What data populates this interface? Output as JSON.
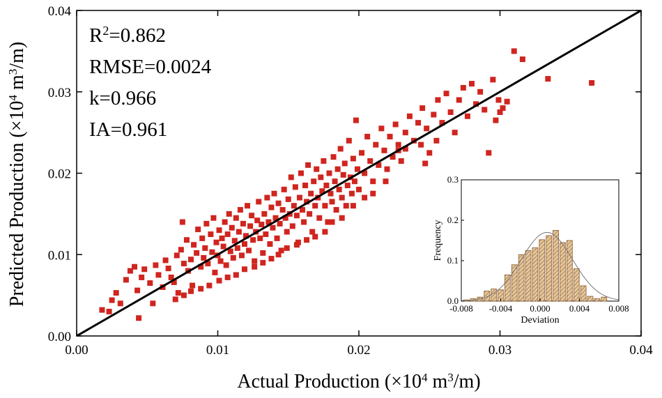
{
  "chart_data": [
    {
      "type": "scatter",
      "xlabel_parts": [
        "Actual Production (×10",
        "4",
        " m",
        "3",
        "/m)"
      ],
      "ylabel_parts": [
        "Predicted Production (×10",
        "4",
        " m",
        "3",
        "/m)"
      ],
      "xlim": [
        0.0,
        0.04
      ],
      "ylim": [
        0.0,
        0.04
      ],
      "xticks": [
        "0.00",
        "0.01",
        "0.02",
        "0.03",
        "0.04"
      ],
      "yticks": [
        "0.00",
        "0.01",
        "0.02",
        "0.03",
        "0.04"
      ],
      "grid": false,
      "reference_line": {
        "from": [
          0.0,
          0.0
        ],
        "to": [
          0.04,
          0.04
        ]
      },
      "marker_color": "#d0251f",
      "line_color": "#000000",
      "stats": [
        {
          "base": "R",
          "sup": "2",
          "rest": "=0.862"
        },
        {
          "base": "RMSE=0.0024",
          "sup": "",
          "rest": ""
        },
        {
          "base": "k=0.966",
          "sup": "",
          "rest": ""
        },
        {
          "base": "IA=0.961",
          "sup": "",
          "rest": ""
        }
      ],
      "points": [
        [
          0.0018,
          0.0032
        ],
        [
          0.0023,
          0.003
        ],
        [
          0.0025,
          0.0044
        ],
        [
          0.0028,
          0.0053
        ],
        [
          0.0031,
          0.004
        ],
        [
          0.0035,
          0.0069
        ],
        [
          0.0038,
          0.008
        ],
        [
          0.0041,
          0.0085
        ],
        [
          0.0043,
          0.0056
        ],
        [
          0.0044,
          0.0022
        ],
        [
          0.0046,
          0.0072
        ],
        [
          0.0048,
          0.0082
        ],
        [
          0.0052,
          0.0065
        ],
        [
          0.0054,
          0.004
        ],
        [
          0.0056,
          0.0087
        ],
        [
          0.0058,
          0.0075
        ],
        [
          0.0061,
          0.006
        ],
        [
          0.0063,
          0.0093
        ],
        [
          0.0065,
          0.0083
        ],
        [
          0.0067,
          0.0072
        ],
        [
          0.0069,
          0.0066
        ],
        [
          0.0071,
          0.0099
        ],
        [
          0.0072,
          0.0053
        ],
        [
          0.0074,
          0.0106
        ],
        [
          0.0075,
          0.014
        ],
        [
          0.0076,
          0.0089
        ],
        [
          0.0078,
          0.0118
        ],
        [
          0.0079,
          0.008
        ],
        [
          0.0081,
          0.0094
        ],
        [
          0.0082,
          0.0062
        ],
        [
          0.0083,
          0.0112
        ],
        [
          0.0085,
          0.0102
        ],
        [
          0.0086,
          0.0131
        ],
        [
          0.0088,
          0.0085
        ],
        [
          0.0089,
          0.012
        ],
        [
          0.009,
          0.0096
        ],
        [
          0.0091,
          0.0108
        ],
        [
          0.0092,
          0.0138
        ],
        [
          0.0093,
          0.0089
        ],
        [
          0.0095,
          0.0125
        ],
        [
          0.0096,
          0.0103
        ],
        [
          0.0097,
          0.0145
        ],
        [
          0.0098,
          0.0078
        ],
        [
          0.0099,
          0.0115
        ],
        [
          0.01,
          0.0099
        ],
        [
          0.0101,
          0.013
        ],
        [
          0.0102,
          0.0092
        ],
        [
          0.0103,
          0.012
        ],
        [
          0.0104,
          0.011
        ],
        [
          0.0105,
          0.014
        ],
        [
          0.0106,
          0.0087
        ],
        [
          0.0107,
          0.0125
        ],
        [
          0.0108,
          0.015
        ],
        [
          0.0109,
          0.0104
        ],
        [
          0.011,
          0.0133
        ],
        [
          0.0111,
          0.0096
        ],
        [
          0.0112,
          0.0117
        ],
        [
          0.0113,
          0.0145
        ],
        [
          0.0114,
          0.0108
        ],
        [
          0.0115,
          0.0128
        ],
        [
          0.0116,
          0.0155
        ],
        [
          0.0117,
          0.0099
        ],
        [
          0.0118,
          0.0138
        ],
        [
          0.0119,
          0.0113
        ],
        [
          0.012,
          0.0123
        ],
        [
          0.0121,
          0.016
        ],
        [
          0.0122,
          0.0105
        ],
        [
          0.0123,
          0.0135
        ],
        [
          0.0124,
          0.0148
        ],
        [
          0.0125,
          0.0118
        ],
        [
          0.0126,
          0.0092
        ],
        [
          0.0127,
          0.0128
        ],
        [
          0.0128,
          0.0142
        ],
        [
          0.0129,
          0.0165
        ],
        [
          0.013,
          0.012
        ],
        [
          0.0131,
          0.0137
        ],
        [
          0.0132,
          0.0102
        ],
        [
          0.0133,
          0.015
        ],
        [
          0.0134,
          0.0125
        ],
        [
          0.0135,
          0.017
        ],
        [
          0.0136,
          0.014
        ],
        [
          0.0137,
          0.0113
        ],
        [
          0.0138,
          0.0158
        ],
        [
          0.0139,
          0.0133
        ],
        [
          0.014,
          0.0175
        ],
        [
          0.0141,
          0.0145
        ],
        [
          0.0142,
          0.012
        ],
        [
          0.0143,
          0.0163
        ],
        [
          0.0144,
          0.0138
        ],
        [
          0.0145,
          0.0105
        ],
        [
          0.0146,
          0.0155
        ],
        [
          0.0147,
          0.018
        ],
        [
          0.0148,
          0.0145
        ],
        [
          0.0149,
          0.0128
        ],
        [
          0.015,
          0.0168
        ],
        [
          0.0151,
          0.015
        ],
        [
          0.0152,
          0.0195
        ],
        [
          0.0153,
          0.0135
        ],
        [
          0.0154,
          0.016
        ],
        [
          0.0155,
          0.0183
        ],
        [
          0.0156,
          0.0148
        ],
        [
          0.0157,
          0.0115
        ],
        [
          0.0158,
          0.017
        ],
        [
          0.0159,
          0.02
        ],
        [
          0.016,
          0.0155
        ],
        [
          0.0161,
          0.014
        ],
        [
          0.0162,
          0.0185
        ],
        [
          0.0163,
          0.0165
        ],
        [
          0.0164,
          0.021
        ],
        [
          0.0165,
          0.015
        ],
        [
          0.0166,
          0.0175
        ],
        [
          0.0167,
          0.0128
        ],
        [
          0.0168,
          0.019
        ],
        [
          0.0169,
          0.016
        ],
        [
          0.017,
          0.0205
        ],
        [
          0.0171,
          0.017
        ],
        [
          0.0172,
          0.0145
        ],
        [
          0.0173,
          0.0195
        ],
        [
          0.0174,
          0.0178
        ],
        [
          0.0175,
          0.0215
        ],
        [
          0.0176,
          0.016
        ],
        [
          0.0177,
          0.0185
        ],
        [
          0.0178,
          0.014
        ],
        [
          0.0179,
          0.02
        ],
        [
          0.018,
          0.0175
        ],
        [
          0.0181,
          0.0165
        ],
        [
          0.0182,
          0.022
        ],
        [
          0.0183,
          0.019
        ],
        [
          0.0184,
          0.0155
        ],
        [
          0.0185,
          0.0205
        ],
        [
          0.0186,
          0.018
        ],
        [
          0.0187,
          0.023
        ],
        [
          0.0188,
          0.017
        ],
        [
          0.0189,
          0.0198
        ],
        [
          0.019,
          0.0212
        ],
        [
          0.0191,
          0.016
        ],
        [
          0.0192,
          0.0185
        ],
        [
          0.0193,
          0.024
        ],
        [
          0.0194,
          0.0195
        ],
        [
          0.0195,
          0.0175
        ],
        [
          0.0196,
          0.0218
        ],
        [
          0.0197,
          0.019
        ],
        [
          0.0198,
          0.0265
        ],
        [
          0.0199,
          0.0205
        ],
        [
          0.02,
          0.018
        ],
        [
          0.0202,
          0.0225
        ],
        [
          0.0204,
          0.02
        ],
        [
          0.0206,
          0.0245
        ],
        [
          0.0208,
          0.0215
        ],
        [
          0.021,
          0.019
        ],
        [
          0.0212,
          0.0235
        ],
        [
          0.0214,
          0.021
        ],
        [
          0.0216,
          0.0255
        ],
        [
          0.0218,
          0.0228
        ],
        [
          0.022,
          0.0205
        ],
        [
          0.0222,
          0.0245
        ],
        [
          0.0224,
          0.022
        ],
        [
          0.0226,
          0.026
        ],
        [
          0.0228,
          0.0235
        ],
        [
          0.023,
          0.0215
        ],
        [
          0.0233,
          0.025
        ],
        [
          0.0236,
          0.027
        ],
        [
          0.0239,
          0.024
        ],
        [
          0.0242,
          0.0262
        ],
        [
          0.0245,
          0.028
        ],
        [
          0.0248,
          0.0255
        ],
        [
          0.025,
          0.0225
        ],
        [
          0.0253,
          0.0272
        ],
        [
          0.0256,
          0.029
        ],
        [
          0.0259,
          0.0262
        ],
        [
          0.0262,
          0.0298
        ],
        [
          0.0265,
          0.0275
        ],
        [
          0.0268,
          0.025
        ],
        [
          0.0271,
          0.029
        ],
        [
          0.0274,
          0.0305
        ],
        [
          0.0277,
          0.027
        ],
        [
          0.028,
          0.031
        ],
        [
          0.0283,
          0.0285
        ],
        [
          0.0286,
          0.03
        ],
        [
          0.0289,
          0.0278
        ],
        [
          0.0292,
          0.0225
        ],
        [
          0.0295,
          0.0315
        ],
        [
          0.0297,
          0.0265
        ],
        [
          0.0299,
          0.029
        ],
        [
          0.03,
          0.0275
        ],
        [
          0.0302,
          0.028
        ],
        [
          0.0305,
          0.0288
        ],
        [
          0.031,
          0.035
        ],
        [
          0.0316,
          0.034
        ],
        [
          0.0334,
          0.0316
        ],
        [
          0.0365,
          0.0311
        ],
        [
          0.0247,
          0.0212
        ],
        [
          0.0255,
          0.024
        ],
        [
          0.0244,
          0.0235
        ],
        [
          0.0233,
          0.023
        ],
        [
          0.0228,
          0.0228
        ],
        [
          0.0219,
          0.019
        ],
        [
          0.021,
          0.0175
        ],
        [
          0.0204,
          0.017
        ],
        [
          0.0196,
          0.016
        ],
        [
          0.0188,
          0.0145
        ],
        [
          0.0181,
          0.014
        ],
        [
          0.0176,
          0.0128
        ],
        [
          0.0169,
          0.0122
        ],
        [
          0.0163,
          0.0118
        ],
        [
          0.0156,
          0.0112
        ],
        [
          0.0149,
          0.0108
        ],
        [
          0.0143,
          0.01
        ],
        [
          0.0138,
          0.0095
        ],
        [
          0.0132,
          0.009
        ],
        [
          0.0126,
          0.0085
        ],
        [
          0.0119,
          0.0082
        ],
        [
          0.0113,
          0.0075
        ],
        [
          0.0107,
          0.0072
        ],
        [
          0.0101,
          0.0068
        ],
        [
          0.0094,
          0.0062
        ],
        [
          0.0088,
          0.0058
        ],
        [
          0.0081,
          0.0055
        ],
        [
          0.0076,
          0.005
        ],
        [
          0.007,
          0.0045
        ]
      ]
    },
    {
      "type": "histogram",
      "xlabel": "Deviation",
      "ylabel": "Frequency",
      "xlim": [
        -0.008,
        0.008
      ],
      "ylim": [
        0.0,
        0.3
      ],
      "xticks": [
        "-0.008",
        "-0.004",
        "0.000",
        "0.004",
        "0.008"
      ],
      "yticks": [
        "0.0",
        "0.1",
        "0.2",
        "0.3"
      ],
      "bin_width": 0.0007,
      "bins": [
        {
          "center": -0.0075,
          "freq": 0.003
        },
        {
          "center": -0.0068,
          "freq": 0.006
        },
        {
          "center": -0.0061,
          "freq": 0.01
        },
        {
          "center": -0.0054,
          "freq": 0.025
        },
        {
          "center": -0.0047,
          "freq": 0.03
        },
        {
          "center": -0.004,
          "freq": 0.028
        },
        {
          "center": -0.0033,
          "freq": 0.065
        },
        {
          "center": -0.0026,
          "freq": 0.09
        },
        {
          "center": -0.0019,
          "freq": 0.115
        },
        {
          "center": -0.0012,
          "freq": 0.125
        },
        {
          "center": -0.0005,
          "freq": 0.132
        },
        {
          "center": 0.0002,
          "freq": 0.152
        },
        {
          "center": 0.0009,
          "freq": 0.162
        },
        {
          "center": 0.0016,
          "freq": 0.175
        },
        {
          "center": 0.0023,
          "freq": 0.145
        },
        {
          "center": 0.003,
          "freq": 0.15
        },
        {
          "center": 0.0037,
          "freq": 0.08
        },
        {
          "center": 0.0044,
          "freq": 0.038
        },
        {
          "center": 0.0051,
          "freq": 0.012
        },
        {
          "center": 0.0058,
          "freq": 0.006
        },
        {
          "center": 0.0065,
          "freq": 0.01
        }
      ],
      "fit_curve": {
        "type": "normal",
        "mean": 0.0007,
        "std": 0.0026,
        "peak": 0.17
      },
      "bar_fill": "#d9b27c",
      "bar_stroke": "#8a5a2b"
    }
  ]
}
